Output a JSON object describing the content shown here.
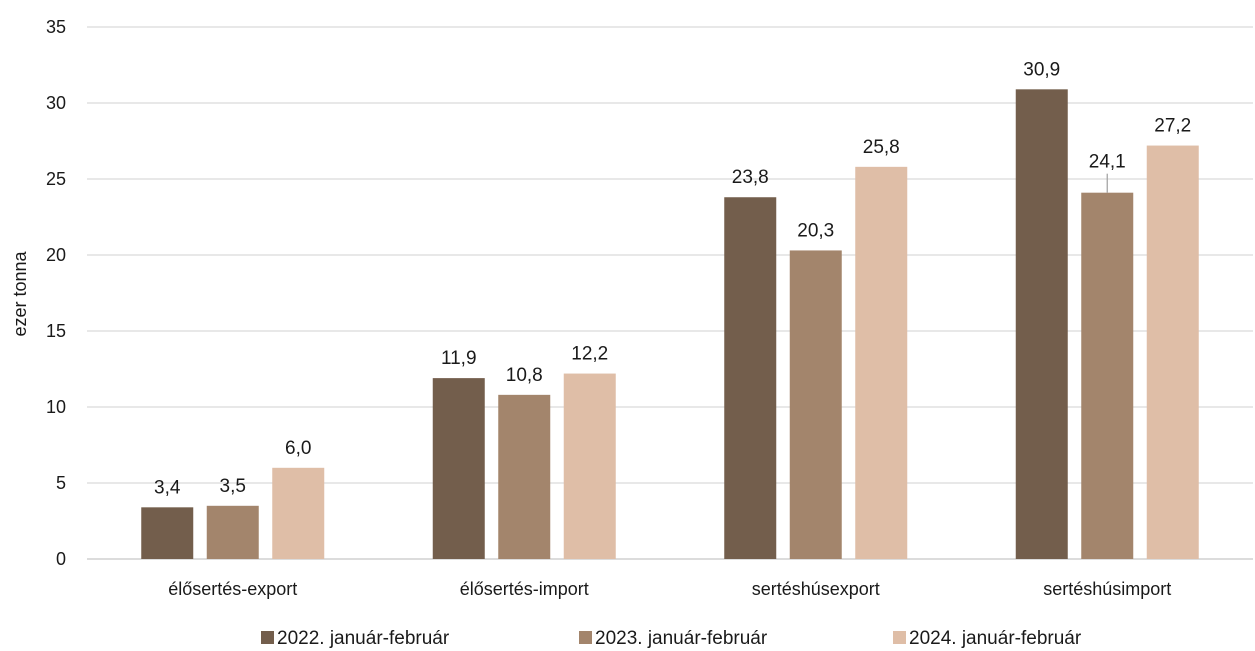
{
  "chart_data": {
    "type": "bar",
    "ylabel": "ezer tonna",
    "ylim": [
      0,
      35
    ],
    "yticks": [
      "0",
      "5",
      "10",
      "15",
      "20",
      "25",
      "30",
      "35"
    ],
    "grid": true,
    "legend_position": "bottom",
    "categories": [
      "élősertés-export",
      "élősertés-import",
      "sertéshúsexport",
      "sertéshúsimport"
    ],
    "series": [
      {
        "name": "2022. január-február",
        "color": "#735e4c",
        "values": [
          3.4,
          11.9,
          23.8,
          30.9
        ],
        "labels": [
          "3,4",
          "11,9",
          "23,8",
          "30,9"
        ]
      },
      {
        "name": "2023. január-február",
        "color": "#a3856c",
        "values": [
          3.5,
          10.8,
          20.3,
          24.1
        ],
        "labels": [
          "3,5",
          "10,8",
          "20,3",
          "24,1"
        ]
      },
      {
        "name": "2024. január-február",
        "color": "#dfbea7",
        "values": [
          6.0,
          12.2,
          25.8,
          27.2
        ],
        "labels": [
          "6,0",
          "12,2",
          "25,8",
          "27,2"
        ]
      }
    ]
  }
}
